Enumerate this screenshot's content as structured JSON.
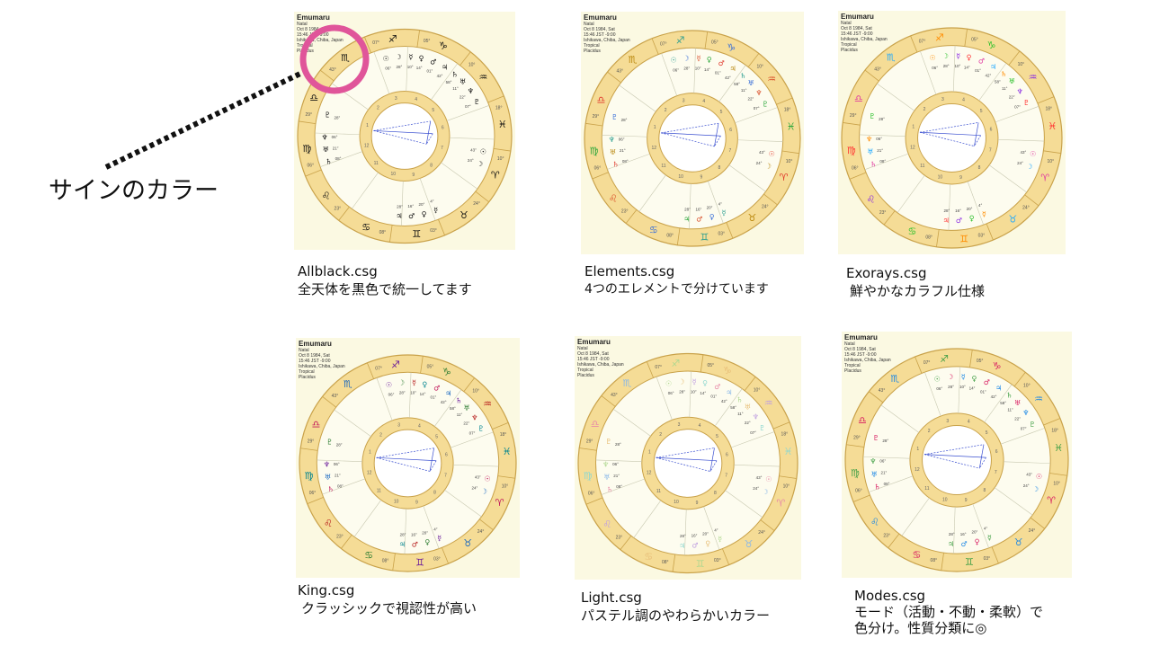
{
  "side_label": "サインのカラー",
  "chart_header": {
    "name": "Emumaru",
    "lines": [
      "Natal",
      "Oct 8 1984, Sat",
      "15:46 JST -9:00",
      "Ishikawa, Chiba, Japan",
      "Tropical",
      "Placidus"
    ]
  },
  "wheel": {
    "sign_degrees": [
      "10°",
      "24°",
      "03°",
      "08°",
      "23°",
      "06°",
      "29°",
      "43°",
      "07°",
      "05°",
      "10°",
      "18°",
      "24°",
      "06°",
      "23°",
      "04°",
      "05°",
      "43°",
      "09°"
    ],
    "planet_labels": [
      "06°",
      "28°",
      "10°",
      "14°",
      "01°",
      "42°",
      "58°",
      "11°",
      "22°",
      "07°",
      "43°",
      "24°",
      "4°",
      "20°",
      "16°",
      "28°",
      "08°",
      "21°"
    ]
  },
  "themes": [
    {
      "title": "Allblack.csg",
      "desc": [
        "全天体を黒色で統一してます"
      ],
      "glyph_colors": [
        "#111111",
        "#111111",
        "#111111",
        "#111111",
        "#111111",
        "#111111"
      ]
    },
    {
      "title": "Elements.csg",
      "desc": [
        "4つのエレメントで分けています"
      ],
      "glyph_colors": [
        "#e0382c",
        "#b8860b",
        "#2a9d8f",
        "#3a6fd8",
        "#d94f2a",
        "#2aa63a"
      ]
    },
    {
      "title": "Exorays.csg",
      "desc": [
        "鮮やかなカラフル仕様"
      ],
      "glyph_colors": [
        "#e03aa0",
        "#22aaff",
        "#ff8c00",
        "#2ac02a",
        "#8a2be2",
        "#ff3030"
      ]
    },
    {
      "title": "King.csg",
      "desc": [
        "クラッシックで視認性が高い"
      ],
      "glyph_colors": [
        "#c2185b",
        "#1565c0",
        "#6a1b9a",
        "#2e7d32",
        "#b71c1c",
        "#00838f"
      ]
    },
    {
      "title": "Light.csg",
      "desc": [
        "パステル調のやわらかいカラー"
      ],
      "glyph_colors": [
        "#e88aa8",
        "#8ab8e8",
        "#b0d890",
        "#e8c07a",
        "#c0a0e0",
        "#90d8d0"
      ]
    },
    {
      "title": "Modes.csg",
      "desc": [
        "モード（活動・不動・柔軟）で",
        "色分け。性質分類に◎"
      ],
      "glyph_colors": [
        "#d81b60",
        "#1e88e5",
        "#43a047",
        "#d81b60",
        "#1e88e5",
        "#43a047"
      ]
    }
  ],
  "colors": {
    "panel_bg": "#fbf9e2",
    "ring_fill": "#f5dc96",
    "ring_stroke": "#c9a24a",
    "highlight_circle": "#e0559a",
    "aspect_line": "#3a4fd0"
  }
}
